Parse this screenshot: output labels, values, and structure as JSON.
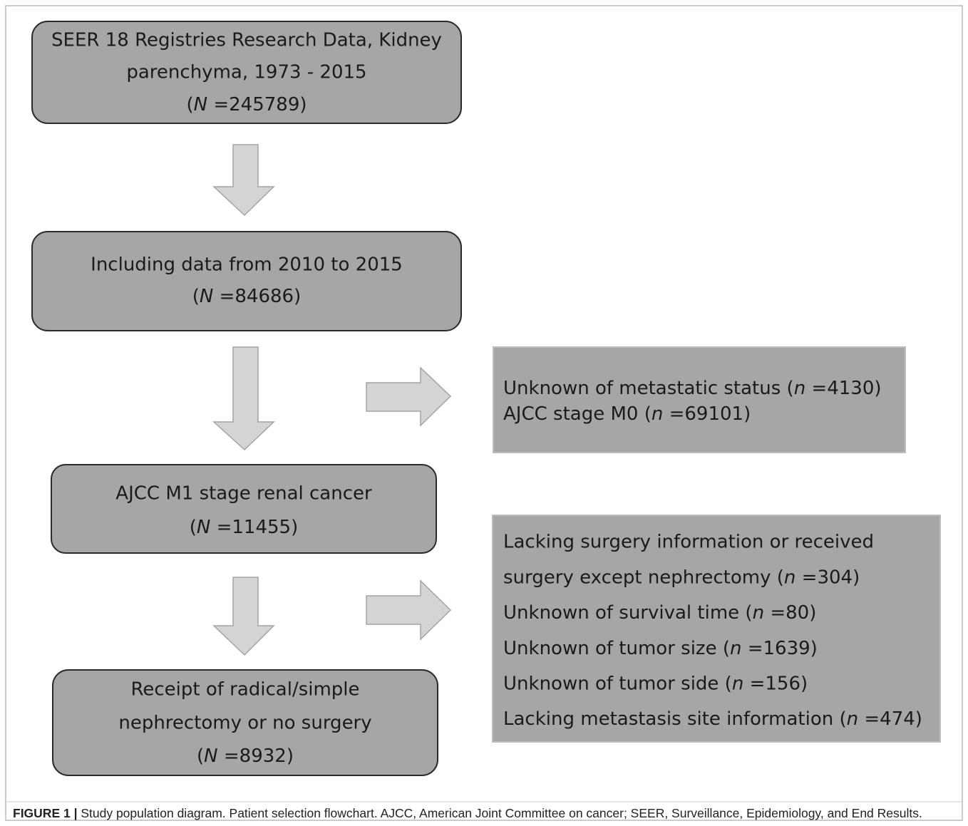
{
  "nodes": [
    {
      "lines": [
        "SEER 18 Registries Research Data, Kidney",
        "parenchyma, 1973 - 2015",
        {
          "before": "(",
          "italic": "N",
          "after": " =245789)"
        }
      ]
    },
    {
      "lines": [
        "Including data from 2010 to 2015",
        {
          "before": "(",
          "italic": "N",
          "after": " =84686)"
        }
      ]
    },
    {
      "lines": [
        "AJCC M1 stage renal cancer",
        {
          "before": "(",
          "italic": "N",
          "after": " =11455)"
        }
      ]
    },
    {
      "lines": [
        "Receipt of radical/simple",
        "nephrectomy or no surgery",
        {
          "before": "(",
          "italic": "N",
          "after": " =8932)"
        }
      ]
    }
  ],
  "exclusions": [
    {
      "lines": [
        {
          "before": "Unknown of metastatic status (",
          "italic": "n",
          "after": " =4130)"
        },
        {
          "before": "AJCC stage M0 (",
          "italic": "n",
          "after": " =69101)"
        }
      ]
    },
    {
      "lines": [
        "Lacking surgery information or received",
        {
          "before": "surgery except nephrectomy (",
          "italic": "n",
          "after": " =304)"
        },
        {
          "before": "Unknown of survival time (",
          "italic": "n",
          "after": " =80)"
        },
        {
          "before": "Unknown of tumor size (",
          "italic": "n",
          "after": " =1639)"
        },
        {
          "before": "Unknown of tumor side (",
          "italic": "n",
          "after": " =156)"
        },
        {
          "before": "Lacking metastasis site information (",
          "italic": "n",
          "after": " =474)"
        }
      ]
    }
  ],
  "caption": {
    "label": "FIGURE 1 |",
    "text": " Study population diagram. Patient selection flowchart. AJCC, American Joint Committee on cancer; SEER, Surveillance, Epidemiology, and End Results."
  }
}
